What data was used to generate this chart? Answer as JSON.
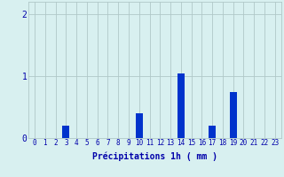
{
  "hours": [
    0,
    1,
    2,
    3,
    4,
    5,
    6,
    7,
    8,
    9,
    10,
    11,
    12,
    13,
    14,
    15,
    16,
    17,
    18,
    19,
    20,
    21,
    22,
    23
  ],
  "values": [
    0,
    0,
    0,
    0.2,
    0,
    0,
    0,
    0,
    0,
    0,
    0.4,
    0,
    0,
    0,
    1.05,
    0,
    0,
    0.2,
    0,
    0.75,
    0,
    0,
    0,
    0
  ],
  "bar_color": "#0033cc",
  "background_color": "#d8f0f0",
  "grid_color": "#b0c8c8",
  "axis_color": "#0000aa",
  "xlabel": "Précipitations 1h ( mm )",
  "xlabel_fontsize": 7,
  "tick_fontsize": 5.5,
  "ylim": [
    0,
    2.2
  ],
  "yticks": [
    0,
    1,
    2
  ],
  "figsize": [
    3.2,
    2.0
  ],
  "dpi": 100
}
